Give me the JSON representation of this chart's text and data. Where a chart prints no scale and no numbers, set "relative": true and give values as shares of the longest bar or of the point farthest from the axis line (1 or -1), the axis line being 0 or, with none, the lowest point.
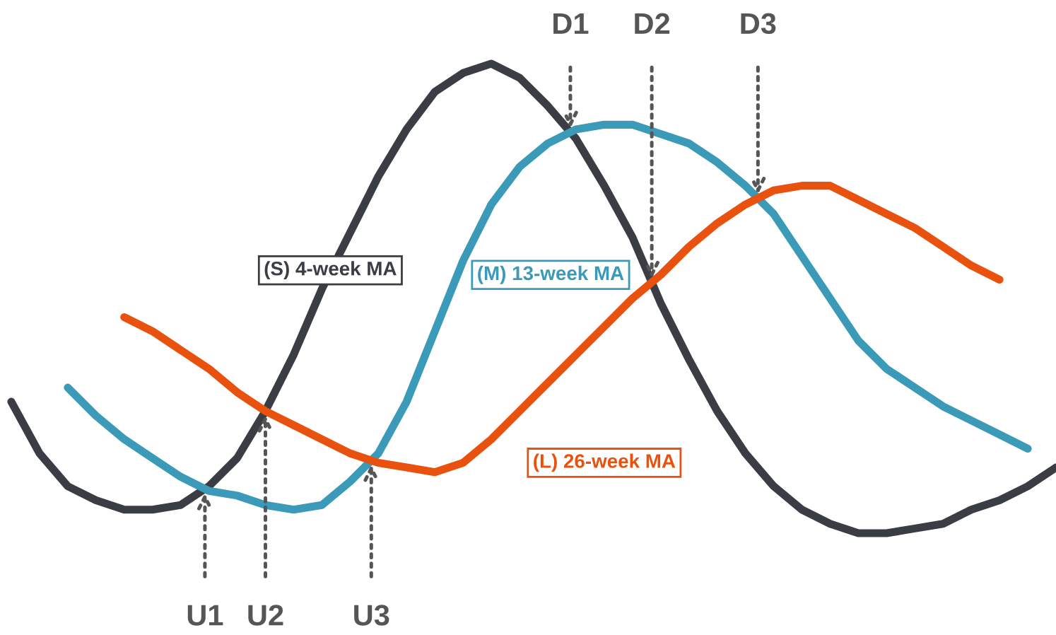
{
  "chart_data": {
    "type": "line",
    "relative": true,
    "legend": false,
    "marker": "none",
    "line_style": "solid",
    "categories": [
      null,
      null,
      null,
      null,
      null,
      null,
      null,
      null,
      null,
      null,
      null,
      null,
      null,
      null,
      null,
      null,
      null,
      null,
      null,
      null,
      null,
      null,
      null,
      null,
      null,
      null,
      null,
      null,
      null,
      null,
      null,
      null,
      null,
      null,
      null,
      null,
      null,
      null
    ],
    "series": [
      {
        "name": "(S) 4-week MA",
        "color": "#3a3d44",
        "values": [
          0.28,
          0.17,
          0.1,
          0.07,
          0.05,
          0.05,
          0.06,
          0.1,
          0.16,
          0.26,
          0.38,
          0.52,
          0.64,
          0.76,
          0.86,
          0.94,
          0.98,
          1.0,
          0.97,
          0.91,
          0.84,
          0.74,
          0.63,
          0.49,
          0.37,
          0.26,
          0.17,
          0.1,
          0.05,
          0.02,
          0.0,
          0.0,
          0.01,
          0.02,
          0.05,
          0.07,
          0.1,
          0.14
        ]
      },
      {
        "name": "(M) 13-week MA",
        "color": "#3a9ab8",
        "values": [
          null,
          null,
          0.31,
          0.25,
          0.2,
          0.16,
          0.12,
          0.09,
          0.08,
          0.06,
          0.05,
          0.06,
          0.11,
          0.17,
          0.28,
          0.43,
          0.58,
          0.7,
          0.78,
          0.83,
          0.86,
          0.87,
          0.87,
          0.85,
          0.83,
          0.79,
          0.74,
          0.68,
          0.59,
          0.5,
          0.41,
          0.35,
          0.31,
          0.27,
          0.24,
          0.21,
          0.18,
          null
        ]
      },
      {
        "name": "(L) 26-week MA",
        "color": "#e8520e",
        "values": [
          null,
          null,
          null,
          null,
          0.46,
          0.43,
          0.39,
          0.35,
          0.3,
          0.26,
          0.23,
          0.2,
          0.17,
          0.15,
          0.14,
          0.13,
          0.15,
          0.2,
          0.26,
          0.32,
          0.38,
          0.44,
          0.5,
          0.55,
          0.61,
          0.66,
          0.7,
          0.73,
          0.74,
          0.74,
          0.71,
          0.68,
          0.65,
          0.61,
          0.57,
          0.54,
          null,
          null
        ]
      }
    ],
    "annotations": [
      "U1",
      "U2",
      "U3",
      "D1",
      "D2",
      "D3"
    ]
  }
}
